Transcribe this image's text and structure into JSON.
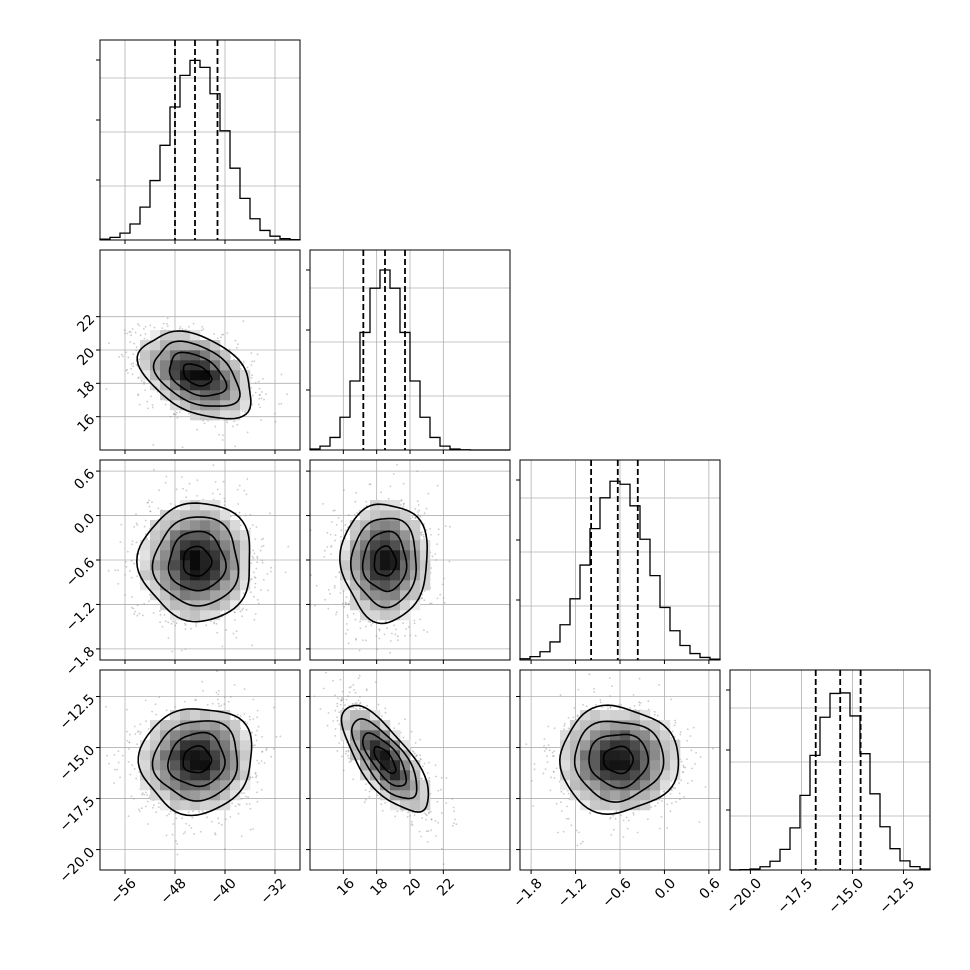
{
  "colors": {
    "line": "#000000",
    "grid": "#b0b0b0",
    "scatter": "#8c8c8c",
    "background": "#ffffff"
  },
  "chart_data": {
    "type": "corner",
    "grid": true,
    "parameters": [
      {
        "mean": -44.5,
        "sd": 4.5,
        "range": [
          -60,
          -28
        ],
        "ticks": [
          -56,
          -48,
          -40,
          -32
        ],
        "tick_labels": [
          "−56",
          "−48",
          "−40",
          "−32"
        ],
        "quantiles": [
          -48.0,
          -44.8,
          -41.2
        ]
      },
      {
        "mean": 18.5,
        "sd": 1.3,
        "range": [
          14,
          26
        ],
        "ticks": [
          16,
          18,
          20,
          22
        ],
        "tick_labels": [
          "16",
          "18",
          "20",
          "22"
        ],
        "quantiles": [
          17.2,
          18.5,
          19.7
        ]
      },
      {
        "mean": -0.62,
        "sd": 0.4,
        "range": [
          -1.95,
          0.75
        ],
        "ticks": [
          -1.8,
          -1.2,
          -0.6,
          0.0,
          0.6
        ],
        "tick_labels": [
          "−1.8",
          "−1.2",
          "−0.6",
          "0.0",
          "0.6"
        ],
        "quantiles": [
          -0.99,
          -0.63,
          -0.36
        ]
      },
      {
        "mean": -15.6,
        "sd": 1.3,
        "range": [
          -21.0,
          -11.2
        ],
        "ticks": [
          -20.0,
          -17.5,
          -15.0,
          -12.5
        ],
        "tick_labels": [
          "−20.0",
          "−17.5",
          "−15.0",
          "−12.5"
        ],
        "quantiles": [
          -16.8,
          -15.6,
          -14.6
        ]
      }
    ],
    "correlations": [
      {
        "row": 1,
        "col": 0,
        "rho": -0.4
      },
      {
        "row": 2,
        "col": 0,
        "rho": 0.0
      },
      {
        "row": 2,
        "col": 1,
        "rho": 0.0
      },
      {
        "row": 3,
        "col": 0,
        "rho": 0.05
      },
      {
        "row": 3,
        "col": 1,
        "rho": -0.72
      },
      {
        "row": 3,
        "col": 2,
        "rho": 0.0
      }
    ],
    "contour_levels_sigma": [
      0.5,
      1.0,
      1.5,
      2.0
    ],
    "histogram_bins": 20,
    "density_bins": 20
  }
}
